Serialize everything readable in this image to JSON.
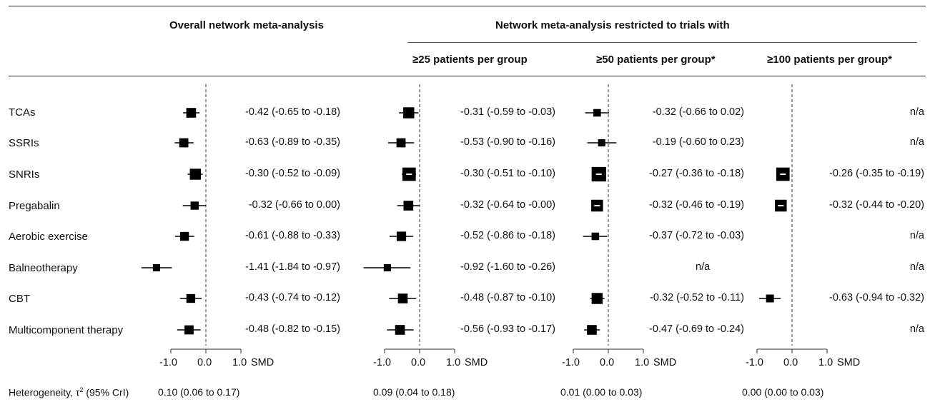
{
  "chart_data": {
    "type": "forest",
    "headers": {
      "overall": "Overall network meta-analysis",
      "restricted": "Network meta-analysis restricted to trials with",
      "panels": [
        "",
        "≥25 patients per group",
        "≥50 patients per group*",
        "≥100 patients per group*"
      ]
    },
    "categories": [
      "TCAs",
      "SSRIs",
      "SNRIs",
      "Pregabalin",
      "Aerobic exercise",
      "Balneotherapy",
      "CBT",
      "Multicomponent therapy"
    ],
    "xlim": [
      -1.0,
      1.0
    ],
    "ticks": [
      -1.0,
      0.0,
      1.0
    ],
    "tick_labels": [
      "-1.0",
      "0.0",
      "1.0"
    ],
    "xlabel": "SMD",
    "panels": [
      {
        "rows": [
          {
            "est": -0.42,
            "lo": -0.65,
            "hi": -0.18,
            "size": 0.62,
            "label": "-0.42 (-0.65 to -0.18)"
          },
          {
            "est": -0.63,
            "lo": -0.89,
            "hi": -0.35,
            "size": 0.58,
            "label": "-0.63 (-0.89 to -0.35)"
          },
          {
            "est": -0.3,
            "lo": -0.52,
            "hi": -0.09,
            "size": 0.7,
            "label": "-0.30 (-0.52 to -0.09)"
          },
          {
            "est": -0.32,
            "lo": -0.66,
            "hi": 0.0,
            "size": 0.52,
            "label": "-0.32 (-0.66 to 0.00)"
          },
          {
            "est": -0.61,
            "lo": -0.88,
            "hi": -0.33,
            "size": 0.56,
            "label": "-0.61 (-0.88 to -0.33)"
          },
          {
            "est": -1.41,
            "lo": -1.84,
            "hi": -0.97,
            "size": 0.46,
            "label": "-1.41 (-1.84 to -0.97)"
          },
          {
            "est": -0.43,
            "lo": -0.74,
            "hi": -0.12,
            "size": 0.56,
            "label": "-0.43 (-0.74 to -0.12)"
          },
          {
            "est": -0.48,
            "lo": -0.82,
            "hi": -0.15,
            "size": 0.58,
            "label": "-0.48 (-0.82 to -0.15)"
          }
        ],
        "heterogeneity": "0.10 (0.06 to 0.17)"
      },
      {
        "rows": [
          {
            "est": -0.31,
            "lo": -0.59,
            "hi": -0.03,
            "size": 0.7,
            "label": "-0.31 (-0.59 to -0.03)"
          },
          {
            "est": -0.53,
            "lo": -0.9,
            "hi": -0.16,
            "size": 0.58,
            "label": "-0.53 (-0.90 to -0.16)"
          },
          {
            "est": -0.3,
            "lo": -0.51,
            "hi": -0.1,
            "size": 0.85,
            "label": "-0.30 (-0.51 to -0.10)"
          },
          {
            "est": -0.32,
            "lo": -0.64,
            "hi": -0.0,
            "size": 0.62,
            "label": "-0.32 (-0.64 to -0.00)"
          },
          {
            "est": -0.52,
            "lo": -0.86,
            "hi": -0.18,
            "size": 0.6,
            "label": "-0.52 (-0.86 to -0.18)"
          },
          {
            "est": -0.92,
            "lo": -1.6,
            "hi": -0.26,
            "size": 0.46,
            "label": "-0.92 (-1.60 to -0.26)"
          },
          {
            "est": -0.48,
            "lo": -0.87,
            "hi": -0.1,
            "size": 0.62,
            "label": "-0.48 (-0.87 to -0.10)"
          },
          {
            "est": -0.56,
            "lo": -0.93,
            "hi": -0.17,
            "size": 0.62,
            "label": "-0.56 (-0.93 to -0.17)"
          }
        ],
        "heterogeneity": "0.09 (0.04 to 0.18)"
      },
      {
        "rows": [
          {
            "est": -0.32,
            "lo": -0.66,
            "hi": 0.02,
            "size": 0.48,
            "label": "-0.32 (-0.66 to 0.02)"
          },
          {
            "est": -0.19,
            "lo": -0.6,
            "hi": 0.23,
            "size": 0.46,
            "label": "-0.19 (-0.60 to 0.23)"
          },
          {
            "est": -0.27,
            "lo": -0.36,
            "hi": -0.18,
            "size": 0.92,
            "label": "-0.27 (-0.36 to -0.18)"
          },
          {
            "est": -0.32,
            "lo": -0.46,
            "hi": -0.19,
            "size": 0.75,
            "label": "-0.32 (-0.46 to -0.19)"
          },
          {
            "est": -0.37,
            "lo": -0.72,
            "hi": -0.03,
            "size": 0.48,
            "label": "-0.37 (-0.72 to -0.03)"
          },
          {
            "est": null,
            "lo": null,
            "hi": null,
            "size": 0,
            "label": "n/a"
          },
          {
            "est": -0.32,
            "lo": -0.52,
            "hi": -0.11,
            "size": 0.7,
            "label": "-0.32 (-0.52 to -0.11)"
          },
          {
            "est": -0.47,
            "lo": -0.69,
            "hi": -0.24,
            "size": 0.62,
            "label": "-0.47 (-0.69 to -0.24)"
          }
        ],
        "heterogeneity": "0.01 (0.00 to 0.03)"
      },
      {
        "rows": [
          {
            "est": null,
            "lo": null,
            "hi": null,
            "size": 0,
            "label": "n/a"
          },
          {
            "est": null,
            "lo": null,
            "hi": null,
            "size": 0,
            "label": "n/a"
          },
          {
            "est": -0.26,
            "lo": -0.35,
            "hi": -0.19,
            "size": 0.85,
            "label": "-0.26 (-0.35 to -0.19)"
          },
          {
            "est": -0.32,
            "lo": -0.44,
            "hi": -0.2,
            "size": 0.75,
            "label": "-0.32 (-0.44 to -0.20)"
          },
          {
            "est": null,
            "lo": null,
            "hi": null,
            "size": 0,
            "label": "n/a"
          },
          {
            "est": null,
            "lo": null,
            "hi": null,
            "size": 0,
            "label": "n/a"
          },
          {
            "est": -0.63,
            "lo": -0.94,
            "hi": -0.32,
            "size": 0.5,
            "label": "-0.63 (-0.94 to -0.32)"
          },
          {
            "est": null,
            "lo": null,
            "hi": null,
            "size": 0,
            "label": "n/a"
          }
        ],
        "heterogeneity": "0.00 (0.00 to 0.03)"
      }
    ],
    "heterogeneity_label": "Heterogeneity, τ",
    "heterogeneity_sup": "2",
    "heterogeneity_suffix": " (95% CrI)"
  }
}
